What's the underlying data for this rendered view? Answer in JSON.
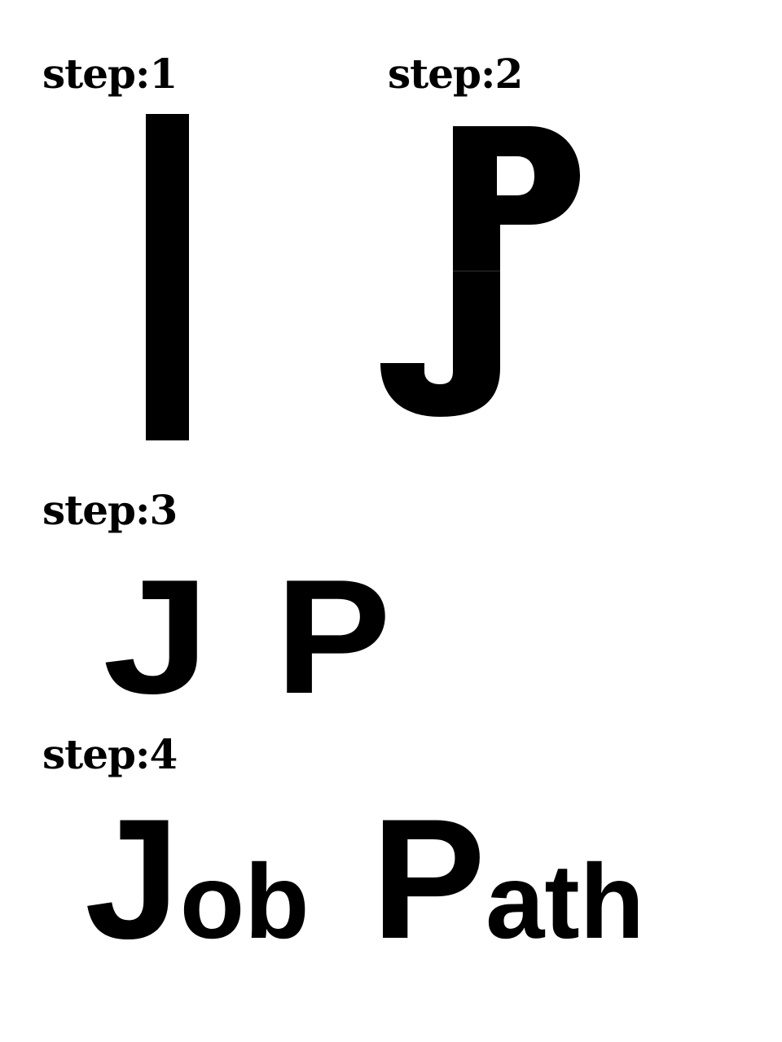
{
  "steps": [
    {
      "label": "step:1"
    },
    {
      "label": "step:2"
    },
    {
      "label": "step:3",
      "letters": [
        "J",
        "P"
      ]
    },
    {
      "label": "step:4",
      "words": [
        "Job",
        "Path"
      ]
    }
  ],
  "colors": {
    "ink": "#000000",
    "background": "#ffffff"
  }
}
